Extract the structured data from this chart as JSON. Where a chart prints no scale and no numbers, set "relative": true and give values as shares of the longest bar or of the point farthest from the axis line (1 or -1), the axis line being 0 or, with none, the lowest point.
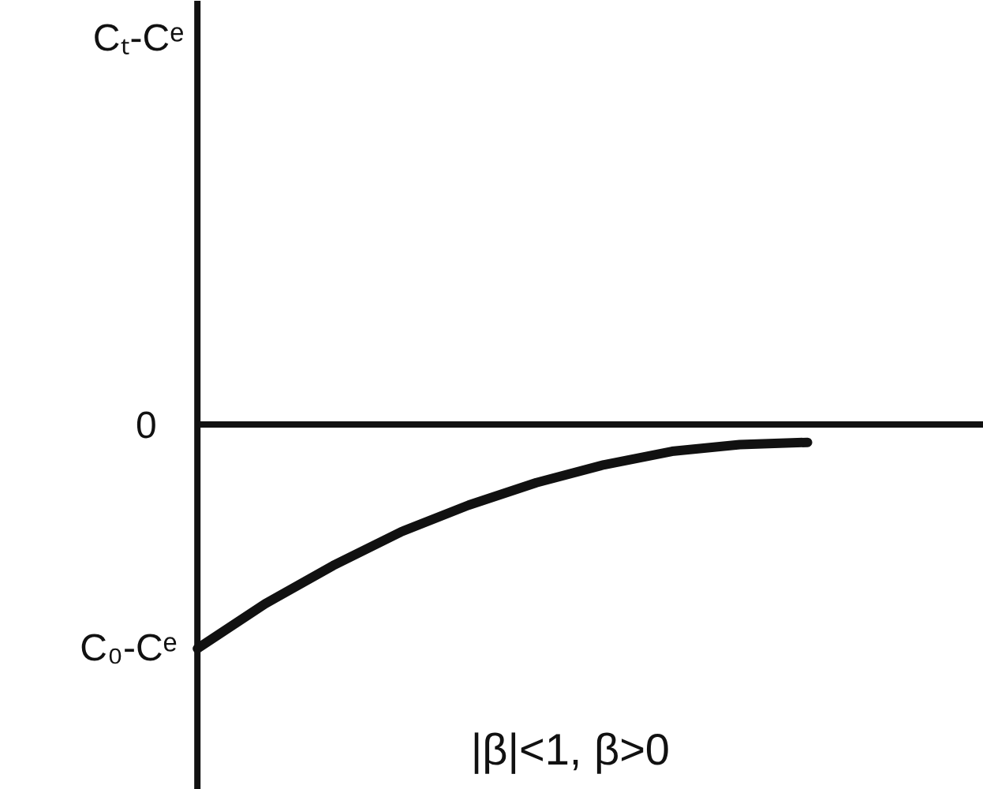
{
  "chart_data": {
    "type": "line",
    "relative": true,
    "categories": [
      null,
      null,
      null,
      null,
      null,
      null,
      null,
      null,
      null,
      null
    ],
    "series": [
      {
        "color": "#111111",
        "values": [
          -1,
          -0.8,
          -0.63,
          -0.48,
          -0.36,
          -0.26,
          -0.18,
          -0.12,
          -0.09,
          -0.08
        ]
      }
    ],
    "annotations": [
      "Cₜ-Cᵉ",
      "0",
      "C₀-Cᵉ",
      "|β|<1, β>0"
    ],
    "grid": false,
    "marker": "none",
    "line_style": "solid"
  }
}
